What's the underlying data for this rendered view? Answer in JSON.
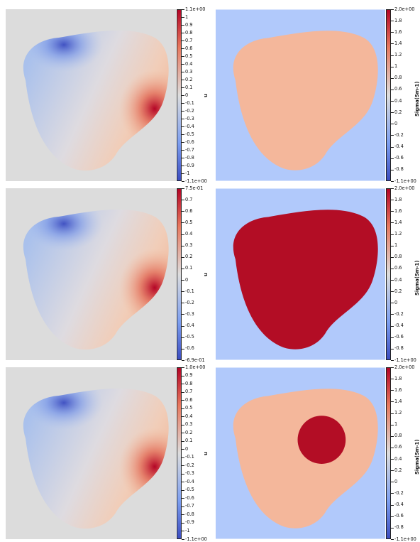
{
  "colors": {
    "plot_background_left": "#dcdcdc",
    "plot_background_right": "#b1c9fb",
    "domain_pink": "#f4b79b",
    "domain_red": "#b30d25",
    "cmap_low": "#3b4cc0",
    "cmap_mid": "#dddddd",
    "cmap_high": "#b40426"
  },
  "panels": [
    {
      "row": 0,
      "column": "left",
      "kind": "field",
      "colorbar": {
        "title": "u",
        "labels": [
          "1.1e+00",
          "1",
          "0.9",
          "0.8",
          "0.7",
          "0.6",
          "0.5",
          "0.4",
          "0.3",
          "0.2",
          "0.1",
          "0",
          "-0.1",
          "-0.2",
          "-0.3",
          "-0.4",
          "-0.5",
          "-0.6",
          "-0.7",
          "-0.8",
          "-0.9",
          "-1",
          "-1.1e+00"
        ]
      }
    },
    {
      "row": 0,
      "column": "right",
      "kind": "conductivity",
      "colorbar": {
        "title": "Sigma(Sm-1)",
        "labels": [
          "2.0e+00",
          "1.8",
          "1.6",
          "1.4",
          "1.2",
          "1",
          "0.8",
          "0.6",
          "0.4",
          "0.2",
          "0",
          "-0.2",
          "-0.4",
          "-0.6",
          "-0.8",
          "-1.1e+00"
        ]
      }
    },
    {
      "row": 1,
      "column": "left",
      "kind": "field",
      "colorbar": {
        "title": "u",
        "labels": [
          "7.5e-01",
          "0.7",
          "0.6",
          "0.5",
          "0.4",
          "0.3",
          "0.2",
          "0.1",
          "0",
          "-0.1",
          "-0.2",
          "-0.3",
          "-0.4",
          "-0.5",
          "-0.6",
          "-6.9e-01"
        ]
      }
    },
    {
      "row": 1,
      "column": "right",
      "kind": "conductivity",
      "colorbar": {
        "title": "Sigma(Sm-1)",
        "labels": [
          "2.0e+00",
          "1.8",
          "1.6",
          "1.4",
          "1.2",
          "1",
          "0.8",
          "0.6",
          "0.4",
          "0.2",
          "0",
          "-0.2",
          "-0.4",
          "-0.6",
          "-0.8",
          "-1.1e+00"
        ]
      }
    },
    {
      "row": 2,
      "column": "left",
      "kind": "field",
      "colorbar": {
        "title": "u",
        "labels": [
          "1.0e+00",
          "0.9",
          "0.8",
          "0.7",
          "0.6",
          "0.5",
          "0.4",
          "0.3",
          "0.2",
          "0.1",
          "0",
          "-0.1",
          "-0.2",
          "-0.3",
          "-0.4",
          "-0.5",
          "-0.6",
          "-0.7",
          "-0.8",
          "-0.9",
          "-1",
          "-1.1e+00"
        ]
      }
    },
    {
      "row": 2,
      "column": "right",
      "kind": "conductivity",
      "colorbar": {
        "title": "Sigma(Sm-1)",
        "labels": [
          "2.0e+00",
          "1.8",
          "1.6",
          "1.4",
          "1.2",
          "1",
          "0.8",
          "0.6",
          "0.4",
          "0.2",
          "0",
          "-0.2",
          "-0.4",
          "-0.6",
          "-0.8",
          "-1.1e+00"
        ]
      }
    }
  ]
}
